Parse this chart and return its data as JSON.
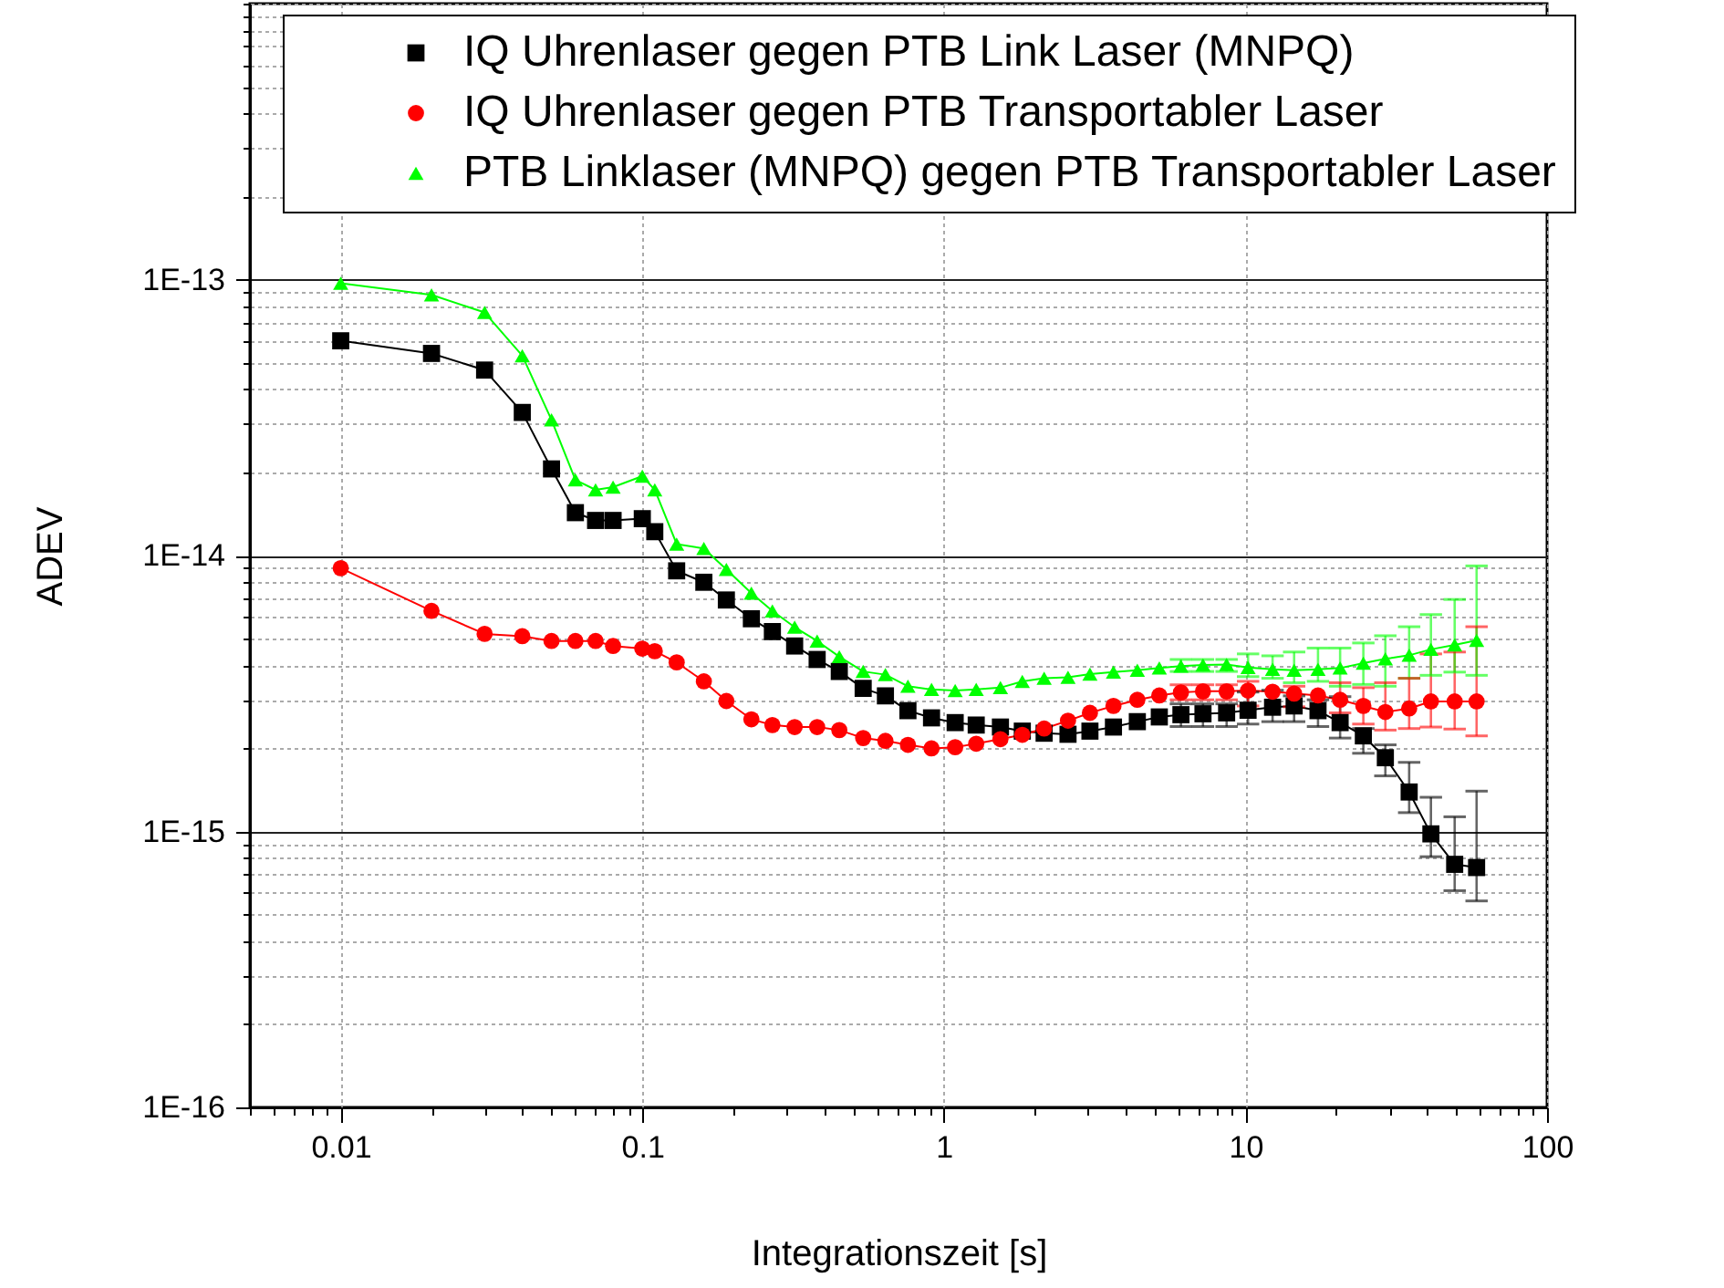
{
  "chart_data": {
    "type": "line",
    "xlabel": "Integrationszeit [s]",
    "ylabel": "ADEV",
    "log": "xy",
    "grid": true,
    "legend": "top right",
    "line_style": "solid",
    "xlim": [
      0.005,
      100
    ],
    "xticks": [
      {
        "value": 0.005,
        "label": null
      },
      {
        "value": 0.006,
        "label": null
      },
      {
        "value": 0.007,
        "label": null
      },
      {
        "value": 0.008,
        "label": null
      },
      {
        "value": 0.009,
        "label": null
      },
      0.01,
      {
        "value": 0.02,
        "label": null
      },
      {
        "value": 0.03,
        "label": null
      },
      {
        "value": 0.04,
        "label": null
      },
      {
        "value": 0.05,
        "label": null
      },
      {
        "value": 0.06,
        "label": null
      },
      {
        "value": 0.07,
        "label": null
      },
      {
        "value": 0.08,
        "label": null
      },
      {
        "value": 0.09,
        "label": null
      },
      0.1,
      {
        "value": 0.2,
        "label": null
      },
      {
        "value": 0.3,
        "label": null
      },
      {
        "value": 0.4,
        "label": null
      },
      {
        "value": 0.5,
        "label": null
      },
      {
        "value": 0.6,
        "label": null
      },
      {
        "value": 0.7,
        "label": null
      },
      {
        "value": 0.8,
        "label": null
      },
      {
        "value": 0.9,
        "label": null
      },
      1,
      {
        "value": 2,
        "label": null
      },
      {
        "value": 3,
        "label": null
      },
      {
        "value": 4,
        "label": null
      },
      {
        "value": 5,
        "label": null
      },
      {
        "value": 6,
        "label": null
      },
      {
        "value": 7,
        "label": null
      },
      {
        "value": 8,
        "label": null
      },
      {
        "value": 9,
        "label": null
      },
      10,
      {
        "value": 20,
        "label": null
      },
      {
        "value": 30,
        "label": null
      },
      {
        "value": 40,
        "label": null
      },
      {
        "value": 50,
        "label": null
      },
      {
        "value": 60,
        "label": null
      },
      {
        "value": 70,
        "label": null
      },
      {
        "value": 80,
        "label": null
      },
      {
        "value": 90,
        "label": null
      },
      100
    ],
    "ylim": [
      1e-16,
      1e-12
    ],
    "yticks": [
      {
        "value": 1e-16,
        "label": "1E-16"
      },
      {
        "value": 2e-16,
        "label": null
      },
      {
        "value": 3e-16,
        "label": null
      },
      {
        "value": 4e-16,
        "label": null
      },
      {
        "value": 5e-16,
        "label": null
      },
      {
        "value": 6e-16,
        "label": null
      },
      {
        "value": 7e-16,
        "label": null
      },
      {
        "value": 8e-16,
        "label": null
      },
      {
        "value": 9e-16,
        "label": null
      },
      {
        "value": 1e-15,
        "label": "1E-15"
      },
      {
        "value": 2e-15,
        "label": null
      },
      {
        "value": 3e-15,
        "label": null
      },
      {
        "value": 4e-15,
        "label": null
      },
      {
        "value": 5e-15,
        "label": null
      },
      {
        "value": 6e-15,
        "label": null
      },
      {
        "value": 7e-15,
        "label": null
      },
      {
        "value": 8e-15,
        "label": null
      },
      {
        "value": 9e-15,
        "label": null
      },
      {
        "value": 1e-14,
        "label": "1E-14"
      },
      {
        "value": 2e-14,
        "label": null
      },
      {
        "value": 3e-14,
        "label": null
      },
      {
        "value": 4e-14,
        "label": null
      },
      {
        "value": 5e-14,
        "label": null
      },
      {
        "value": 6e-14,
        "label": null
      },
      {
        "value": 7e-14,
        "label": null
      },
      {
        "value": 8e-14,
        "label": null
      },
      {
        "value": 9e-14,
        "label": null
      },
      {
        "value": 1e-13,
        "label": "1E-13"
      },
      {
        "value": 2e-13,
        "label": null
      },
      {
        "value": 3e-13,
        "label": null
      },
      {
        "value": 4e-13,
        "label": null
      },
      {
        "value": 5e-13,
        "label": null
      },
      {
        "value": 6e-13,
        "label": null
      },
      {
        "value": 7e-13,
        "label": null
      },
      {
        "value": 8e-13,
        "label": null
      },
      {
        "value": 9e-13,
        "label": null
      },
      {
        "value": 1e-12,
        "label": null
      }
    ],
    "x": [
      0.01,
      0.02,
      0.03,
      0.04,
      0.05,
      0.06,
      0.07,
      0.08,
      0.1,
      0.11,
      0.13,
      0.16,
      0.19,
      0.23,
      0.27,
      0.32,
      0.38,
      0.45,
      0.54,
      0.64,
      0.76,
      0.91,
      1.09,
      1.28,
      1.54,
      1.82,
      2.15,
      2.58,
      3.05,
      3.65,
      4.38,
      5.18,
      6.11,
      7.23,
      8.66,
      10.2,
      12.3,
      14.5,
      17.4,
      20.6,
      24.6,
      29.1,
      34.9,
      41.2,
      49.4,
      58.4
    ],
    "series": [
      {
        "name": "IQ Uhrenlaser gegen PTB Link Laser (MNPQ)",
        "color": "#000000",
        "marker": "square",
        "values": [
          6e-14,
          5.4e-14,
          4.7e-14,
          3.3e-14,
          2.06e-14,
          1.43e-14,
          1.34e-14,
          1.34e-14,
          1.36e-14,
          1.22e-14,
          8.8e-15,
          8e-15,
          6.9e-15,
          5.9e-15,
          5.3e-15,
          4.7e-15,
          4.2e-15,
          3.8e-15,
          3.3e-15,
          3.1e-15,
          2.74e-15,
          2.58e-15,
          2.48e-15,
          2.43e-15,
          2.39e-15,
          2.31e-15,
          2.27e-15,
          2.25e-15,
          2.31e-15,
          2.39e-15,
          2.5e-15,
          2.6e-15,
          2.65e-15,
          2.67e-15,
          2.69e-15,
          2.75e-15,
          2.82e-15,
          2.85e-15,
          2.74e-15,
          2.48e-15,
          2.22e-15,
          1.85e-15,
          1.39e-15,
          9.8e-16,
          7.6e-16,
          7.4e-16
        ],
        "errors": [
          null,
          null,
          null,
          null,
          null,
          null,
          null,
          null,
          null,
          null,
          null,
          null,
          null,
          null,
          null,
          null,
          null,
          null,
          null,
          null,
          null,
          null,
          null,
          null,
          null,
          null,
          null,
          null,
          null,
          null,
          null,
          null,
          [
            2.4e-15,
            2.9e-15
          ],
          [
            2.4e-15,
            2.9e-15
          ],
          [
            2.4e-15,
            2.9e-15
          ],
          [
            2.45e-15,
            3.2e-15
          ],
          [
            2.5e-15,
            3.25e-15
          ],
          [
            2.5e-15,
            3.1e-15
          ],
          [
            2.4e-15,
            3e-15
          ],
          [
            2.18e-15,
            3.08e-15
          ],
          [
            1.92e-15,
            2.36e-15
          ],
          [
            1.59e-15,
            2.06e-15
          ],
          [
            1.17e-15,
            1.78e-15
          ],
          [
            8.1e-16,
            1.33e-15
          ],
          [
            6.1e-16,
            1.13e-15
          ],
          [
            5.6e-16,
            1.4e-15
          ]
        ]
      },
      {
        "name": "IQ Uhrenlaser gegen PTB Transportabler Laser",
        "color": "#ff0000",
        "marker": "circle",
        "values": [
          9e-15,
          6.3e-15,
          5.2e-15,
          5.1e-15,
          4.9e-15,
          4.9e-15,
          4.9e-15,
          4.7e-15,
          4.6e-15,
          4.5e-15,
          4.1e-15,
          3.5e-15,
          2.97e-15,
          2.55e-15,
          2.43e-15,
          2.39e-15,
          2.39e-15,
          2.33e-15,
          2.18e-15,
          2.13e-15,
          2.06e-15,
          2e-15,
          2.02e-15,
          2.08e-15,
          2.16e-15,
          2.24e-15,
          2.36e-15,
          2.52e-15,
          2.69e-15,
          2.85e-15,
          3e-15,
          3.11e-15,
          3.19e-15,
          3.22e-15,
          3.22e-15,
          3.24e-15,
          3.21e-15,
          3.16e-15,
          3.11e-15,
          3e-15,
          2.85e-15,
          2.71e-15,
          2.79e-15,
          2.96e-15,
          2.96e-15,
          2.96e-15
        ],
        "errors": [
          null,
          null,
          null,
          null,
          null,
          null,
          null,
          null,
          null,
          null,
          null,
          null,
          null,
          null,
          null,
          null,
          null,
          null,
          null,
          null,
          null,
          null,
          null,
          null,
          null,
          null,
          null,
          null,
          null,
          null,
          null,
          null,
          [
            3e-15,
            3.4e-15
          ],
          [
            3e-15,
            3.4e-15
          ],
          [
            3e-15,
            3.4e-15
          ],
          [
            2.85e-15,
            3.5e-15
          ],
          null,
          [
            2.83e-15,
            3.36e-15
          ],
          null,
          [
            2.69e-15,
            3.46e-15
          ],
          [
            2.45e-15,
            3.32e-15
          ],
          [
            2.33e-15,
            3.46e-15
          ],
          [
            2.36e-15,
            3.59e-15
          ],
          [
            2.39e-15,
            4.4e-15
          ],
          [
            2.35e-15,
            4.47e-15
          ],
          [
            2.22e-15,
            5.52e-15
          ]
        ]
      },
      {
        "name": "PTB Linklaser (MNPQ) gegen PTB Transportabler Laser",
        "color": "#00ff00",
        "marker": "triangle",
        "values": [
          9.7e-14,
          8.8e-14,
          7.6e-14,
          5.3e-14,
          3.1e-14,
          1.88e-14,
          1.73e-14,
          1.77e-14,
          1.94e-14,
          1.73e-14,
          1.1e-14,
          1.06e-14,
          8.9e-15,
          7.3e-15,
          6.3e-15,
          5.5e-15,
          4.9e-15,
          4.3e-15,
          3.8e-15,
          3.7e-15,
          3.36e-15,
          3.27e-15,
          3.24e-15,
          3.27e-15,
          3.32e-15,
          3.5e-15,
          3.59e-15,
          3.62e-15,
          3.72e-15,
          3.78e-15,
          3.84e-15,
          3.91e-15,
          3.97e-15,
          4.01e-15,
          4.03e-15,
          3.93e-15,
          3.87e-15,
          3.84e-15,
          3.87e-15,
          3.91e-15,
          4.07e-15,
          4.22e-15,
          4.35e-15,
          4.57e-15,
          4.74e-15,
          4.93e-15
        ],
        "errors": [
          null,
          null,
          null,
          null,
          null,
          null,
          null,
          null,
          null,
          null,
          null,
          null,
          null,
          null,
          null,
          null,
          null,
          null,
          null,
          null,
          null,
          null,
          null,
          null,
          null,
          null,
          null,
          null,
          null,
          null,
          null,
          null,
          [
            3.8e-15,
            4.2e-15
          ],
          [
            3.8e-15,
            4.2e-15
          ],
          [
            3.8e-15,
            4.2e-15
          ],
          [
            3.64e-15,
            4.4e-15
          ],
          [
            3.59e-15,
            4.33e-15
          ],
          [
            3.46e-15,
            4.47e-15
          ],
          [
            3.5e-15,
            4.62e-15
          ],
          [
            3.36e-15,
            4.62e-15
          ],
          [
            3.41e-15,
            4.82e-15
          ],
          [
            3.36e-15,
            5.12e-15
          ],
          [
            3.59e-15,
            5.52e-15
          ],
          [
            3.68e-15,
            6.11e-15
          ],
          [
            3.78e-15,
            6.93e-15
          ],
          [
            3.68e-15,
            9.17e-15
          ]
        ]
      }
    ]
  }
}
